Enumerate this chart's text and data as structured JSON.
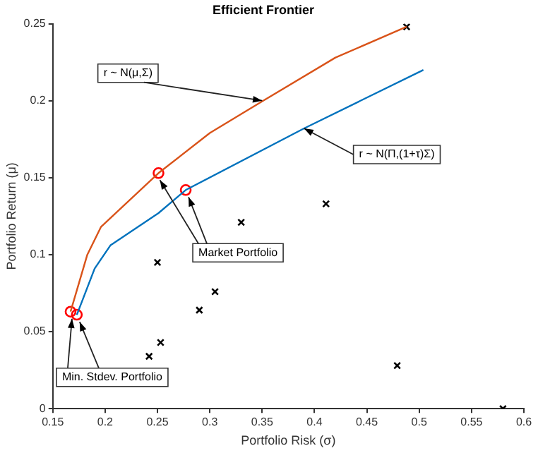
{
  "chart_data": {
    "type": "line",
    "title": "Efficient Frontier",
    "xlabel": "Portfolio Risk (σ)",
    "ylabel": "Portfolio Return (μ)",
    "xlim": [
      0.15,
      0.6
    ],
    "xticks": [
      0.15,
      0.2,
      0.25,
      0.3,
      0.35,
      0.4,
      0.45,
      0.5,
      0.55,
      0.6
    ],
    "ylim": [
      0,
      0.25
    ],
    "yticks": [
      0,
      0.05,
      0.1,
      0.15,
      0.2,
      0.25
    ],
    "grid": false,
    "legend": false,
    "series": [
      {
        "color": "#d95319",
        "marker": "none",
        "x": [
          0.167,
          0.183,
          0.196,
          0.251,
          0.3,
          0.351,
          0.42,
          0.488
        ],
        "values": [
          0.063,
          0.1,
          0.118,
          0.153,
          0.179,
          0.2,
          0.228,
          0.248
        ]
      },
      {
        "color": "#0072bd",
        "marker": "none",
        "x": [
          0.173,
          0.19,
          0.205,
          0.251,
          0.277,
          0.39,
          0.504
        ],
        "values": [
          0.061,
          0.091,
          0.106,
          0.127,
          0.142,
          0.182,
          0.22
        ]
      },
      {
        "type": "scatter",
        "color": "#ff0000",
        "marker": "circle",
        "x": [
          0.251,
          0.277,
          0.167,
          0.173
        ],
        "values": [
          0.153,
          0.142,
          0.063,
          0.061
        ]
      },
      {
        "type": "scatter",
        "color": "#000000",
        "marker": "cross",
        "x": [
          0.488,
          0.411,
          0.33,
          0.25,
          0.305,
          0.29,
          0.253,
          0.242,
          0.479,
          0.58
        ],
        "values": [
          0.248,
          0.133,
          0.121,
          0.095,
          0.076,
          0.064,
          0.043,
          0.034,
          0.028,
          0.0
        ]
      }
    ],
    "annotations": [
      {
        "text": "r ~ N(μ,Σ)",
        "x": 0.35,
        "y": 0.2
      },
      {
        "text": "r ~ N(Π,(1+τ)Σ)",
        "x": 0.39,
        "y": 0.182
      },
      {
        "text": "Market Portfolio",
        "x": 0.251,
        "y": 0.153
      },
      {
        "text": "Min. Stdev. Portfolio",
        "x": 0.167,
        "y": 0.063
      }
    ]
  }
}
